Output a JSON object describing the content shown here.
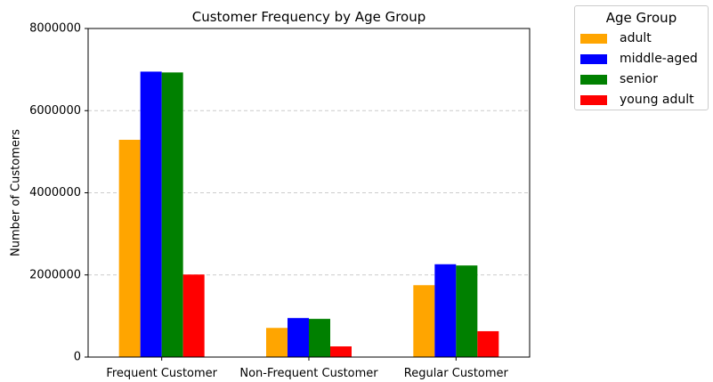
{
  "chart_data": {
    "type": "bar",
    "title": "Customer Frequency by Age Group",
    "xlabel": "",
    "ylabel": "Number of Customers",
    "ylim": [
      0,
      8000000
    ],
    "yticks": [
      0,
      2000000,
      4000000,
      6000000,
      8000000
    ],
    "grid": "y-dashed",
    "legend_title": "Age Group",
    "legend_position": "outside-top-right",
    "categories": [
      "Frequent Customer",
      "Non-Frequent Customer",
      "Regular Customer"
    ],
    "series": [
      {
        "name": "adult",
        "color": "#ffa500",
        "values": [
          5290000,
          710000,
          1750000
        ]
      },
      {
        "name": "middle-aged",
        "color": "#0000ff",
        "values": [
          6950000,
          950000,
          2260000
        ]
      },
      {
        "name": "senior",
        "color": "#008000",
        "values": [
          6930000,
          930000,
          2230000
        ]
      },
      {
        "name": "young adult",
        "color": "#ff0000",
        "values": [
          2010000,
          260000,
          630000
        ]
      }
    ]
  }
}
